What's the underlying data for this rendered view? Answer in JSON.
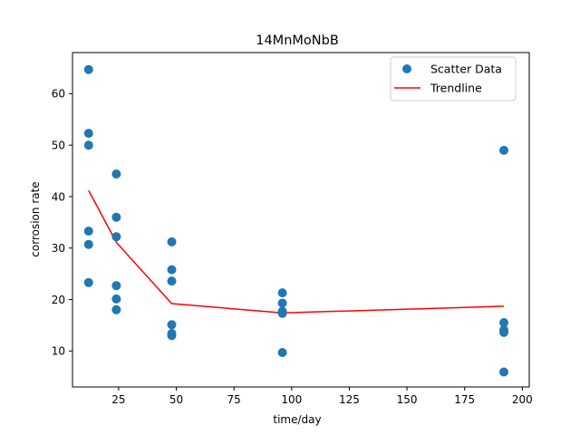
{
  "chart_data": {
    "type": "scatter",
    "title": "14MnMoNbB",
    "xlabel": "time/day",
    "ylabel": "corrosion rate",
    "xlim": [
      5,
      203
    ],
    "ylim": [
      3,
      68
    ],
    "xticks": [
      25,
      50,
      75,
      100,
      125,
      150,
      175,
      200
    ],
    "yticks": [
      10,
      20,
      30,
      40,
      50,
      60
    ],
    "grid": false,
    "legend_position": "top-right",
    "series": [
      {
        "name": "Scatter Data",
        "kind": "scatter",
        "color": "#1f77b4",
        "points": [
          {
            "x": 12,
            "y": 64.7
          },
          {
            "x": 12,
            "y": 52.3
          },
          {
            "x": 12,
            "y": 50.0
          },
          {
            "x": 12,
            "y": 33.3
          },
          {
            "x": 12,
            "y": 30.7
          },
          {
            "x": 12,
            "y": 23.3
          },
          {
            "x": 24,
            "y": 44.4
          },
          {
            "x": 24,
            "y": 36.0
          },
          {
            "x": 24,
            "y": 32.2
          },
          {
            "x": 24,
            "y": 22.7
          },
          {
            "x": 24,
            "y": 20.1
          },
          {
            "x": 24,
            "y": 18.0
          },
          {
            "x": 48,
            "y": 31.2
          },
          {
            "x": 48,
            "y": 25.8
          },
          {
            "x": 48,
            "y": 23.6
          },
          {
            "x": 48,
            "y": 15.1
          },
          {
            "x": 48,
            "y": 13.4
          },
          {
            "x": 48,
            "y": 13.0
          },
          {
            "x": 96,
            "y": 21.3
          },
          {
            "x": 96,
            "y": 19.3
          },
          {
            "x": 96,
            "y": 17.7
          },
          {
            "x": 96,
            "y": 17.3
          },
          {
            "x": 96,
            "y": 9.7
          },
          {
            "x": 192,
            "y": 49.0
          },
          {
            "x": 192,
            "y": 15.5
          },
          {
            "x": 192,
            "y": 14.1
          },
          {
            "x": 192,
            "y": 13.6
          },
          {
            "x": 192,
            "y": 5.9
          }
        ]
      },
      {
        "name": "Trendline",
        "kind": "line",
        "color": "#ff0000",
        "points": [
          {
            "x": 12,
            "y": 41.2
          },
          {
            "x": 24,
            "y": 31.1
          },
          {
            "x": 48,
            "y": 19.2
          },
          {
            "x": 96,
            "y": 17.4
          },
          {
            "x": 192,
            "y": 18.7
          }
        ]
      }
    ]
  }
}
